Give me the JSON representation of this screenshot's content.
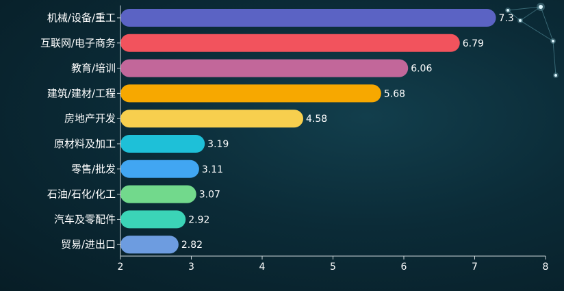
{
  "chart_data": {
    "type": "bar",
    "orientation": "horizontal",
    "categories": [
      "机械/设备/重工",
      "互联网/电子商务",
      "教育/培训",
      "建筑/建材/工程",
      "房地产开发",
      "原材料及加工",
      "零售/批发",
      "石油/石化/化工",
      "汽车及零配件",
      "贸易/进出口"
    ],
    "values": [
      7.3,
      6.79,
      6.06,
      5.68,
      4.58,
      3.19,
      3.11,
      3.07,
      2.92,
      2.82
    ],
    "value_labels": [
      "7.3",
      "6.79",
      "6.06",
      "5.68",
      "4.58",
      "3.19",
      "3.11",
      "3.07",
      "2.92",
      "2.82"
    ],
    "colors": [
      "#5b63c4",
      "#f2535d",
      "#c2679a",
      "#f7a800",
      "#f7cf4e",
      "#1ec0d8",
      "#41a6f2",
      "#72d98c",
      "#3bd4b7",
      "#6d9ce0"
    ],
    "xlim": [
      2,
      8
    ],
    "x_ticks": [
      "2",
      "3",
      "4",
      "5",
      "6",
      "7",
      "8"
    ],
    "grid": false,
    "title": "",
    "xlabel": "",
    "ylabel": ""
  }
}
